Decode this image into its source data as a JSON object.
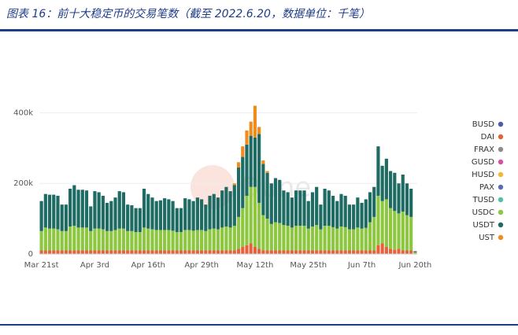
{
  "chart_data": {
    "type": "stacked_bar",
    "title": "图表 16：前十大稳定币的交易笔数（截至 2022.6.20，数据单位：千笔）",
    "watermark": "Dune",
    "categories": [
      "Mar 21st",
      null,
      null,
      null,
      null,
      null,
      null,
      null,
      null,
      null,
      null,
      null,
      null,
      "Apr 3rd",
      null,
      null,
      null,
      null,
      null,
      null,
      null,
      null,
      null,
      null,
      null,
      null,
      "Apr 16th",
      null,
      null,
      null,
      null,
      null,
      null,
      null,
      null,
      null,
      null,
      null,
      null,
      "Apr 29th",
      null,
      null,
      null,
      null,
      null,
      null,
      null,
      null,
      null,
      null,
      null,
      null,
      "May 12th",
      null,
      null,
      null,
      null,
      null,
      null,
      null,
      null,
      null,
      null,
      null,
      null,
      "May 25th",
      null,
      null,
      null,
      null,
      null,
      null,
      null,
      null,
      null,
      null,
      null,
      null,
      "Jun 7th",
      null,
      null,
      null,
      null,
      null,
      null,
      null,
      null,
      null,
      null,
      null,
      null,
      "Jun 20th"
    ],
    "ylim": [
      0,
      430000
    ],
    "yticks": [
      0,
      {
        "value": 200000,
        "label": "200k"
      },
      {
        "value": 400000,
        "label": "400k"
      }
    ],
    "series": [
      {
        "name": "BUSD",
        "color": "#4e5ba6",
        "values": [
          0,
          0,
          0,
          0,
          0,
          0,
          0,
          0,
          0,
          0,
          0,
          0,
          0,
          0,
          0,
          0,
          0,
          0,
          0,
          0,
          0,
          0,
          0,
          0,
          0,
          0,
          0,
          0,
          0,
          0,
          0,
          0,
          0,
          0,
          0,
          0,
          0,
          0,
          0,
          0,
          0,
          0,
          0,
          0,
          0,
          0,
          0,
          0,
          0,
          0,
          0,
          0,
          0,
          0,
          0,
          0,
          0,
          0,
          0,
          0,
          0,
          0,
          0,
          0,
          0,
          0,
          0,
          0,
          0,
          0,
          0,
          0,
          0,
          0,
          0,
          0,
          0,
          0,
          0,
          0,
          0,
          0,
          0,
          0,
          0,
          0,
          0,
          0,
          0,
          0,
          0,
          0
        ]
      },
      {
        "name": "DAI",
        "color": "#e8603c",
        "values": [
          10000,
          10000,
          10000,
          10000,
          10000,
          10000,
          10000,
          10000,
          10000,
          10000,
          10000,
          10000,
          10000,
          10000,
          10000,
          10000,
          10000,
          10000,
          10000,
          10000,
          10000,
          10000,
          10000,
          10000,
          10000,
          10000,
          10000,
          10000,
          10000,
          10000,
          10000,
          10000,
          10000,
          10000,
          10000,
          10000,
          10000,
          10000,
          10000,
          10000,
          10000,
          10000,
          10000,
          10000,
          10000,
          10000,
          10000,
          10000,
          15000,
          20000,
          25000,
          30000,
          20000,
          15000,
          10000,
          10000,
          10000,
          10000,
          10000,
          10000,
          10000,
          10000,
          10000,
          10000,
          10000,
          10000,
          10000,
          10000,
          10000,
          10000,
          10000,
          10000,
          10000,
          10000,
          10000,
          10000,
          10000,
          10000,
          10000,
          10000,
          10000,
          10000,
          25000,
          30000,
          20000,
          15000,
          12000,
          15000,
          10000,
          10000,
          10000,
          2000
        ]
      },
      {
        "name": "FRAX",
        "color": "#8c8c8c",
        "values": [
          0,
          0,
          0,
          0,
          0,
          0,
          0,
          0,
          0,
          0,
          0,
          0,
          0,
          0,
          0,
          0,
          0,
          0,
          0,
          0,
          0,
          0,
          0,
          0,
          0,
          0,
          0,
          0,
          0,
          0,
          0,
          0,
          0,
          0,
          0,
          0,
          0,
          0,
          0,
          0,
          0,
          0,
          0,
          0,
          0,
          0,
          0,
          0,
          0,
          0,
          0,
          0,
          0,
          0,
          0,
          0,
          0,
          0,
          0,
          0,
          0,
          0,
          0,
          0,
          0,
          0,
          0,
          0,
          0,
          0,
          0,
          0,
          0,
          0,
          0,
          0,
          0,
          0,
          0,
          0,
          0,
          0,
          0,
          0,
          0,
          0,
          0,
          0,
          0,
          0,
          0,
          0
        ]
      },
      {
        "name": "GUSD",
        "color": "#d94fa0",
        "values": [
          0,
          0,
          0,
          0,
          0,
          0,
          0,
          0,
          0,
          0,
          0,
          0,
          0,
          0,
          0,
          0,
          0,
          0,
          0,
          0,
          0,
          0,
          0,
          0,
          0,
          0,
          0,
          0,
          0,
          0,
          0,
          0,
          0,
          0,
          0,
          0,
          0,
          0,
          0,
          0,
          0,
          0,
          0,
          0,
          0,
          0,
          0,
          0,
          0,
          0,
          0,
          0,
          0,
          0,
          0,
          0,
          0,
          0,
          0,
          0,
          0,
          0,
          0,
          0,
          0,
          0,
          0,
          0,
          0,
          0,
          0,
          0,
          0,
          0,
          0,
          0,
          0,
          0,
          0,
          0,
          0,
          0,
          0,
          0,
          0,
          0,
          0,
          0,
          0,
          0,
          0,
          0
        ]
      },
      {
        "name": "HUSD",
        "color": "#f2b630",
        "values": [
          0,
          0,
          0,
          0,
          0,
          0,
          0,
          0,
          0,
          0,
          0,
          0,
          0,
          0,
          0,
          0,
          0,
          0,
          0,
          0,
          0,
          0,
          0,
          0,
          0,
          0,
          0,
          0,
          0,
          0,
          0,
          0,
          0,
          0,
          0,
          0,
          0,
          0,
          0,
          0,
          0,
          0,
          0,
          0,
          0,
          0,
          0,
          0,
          0,
          0,
          0,
          0,
          0,
          0,
          0,
          0,
          0,
          0,
          0,
          0,
          0,
          0,
          0,
          0,
          0,
          0,
          0,
          0,
          0,
          0,
          0,
          0,
          0,
          0,
          0,
          0,
          0,
          0,
          0,
          0,
          0,
          0,
          0,
          0,
          0,
          0,
          0,
          0,
          0,
          0,
          0,
          0
        ]
      },
      {
        "name": "PAX",
        "color": "#5a6bb5",
        "values": [
          0,
          0,
          0,
          0,
          0,
          0,
          0,
          0,
          0,
          0,
          0,
          0,
          0,
          0,
          0,
          0,
          0,
          0,
          0,
          0,
          0,
          0,
          0,
          0,
          0,
          0,
          0,
          0,
          0,
          0,
          0,
          0,
          0,
          0,
          0,
          0,
          0,
          0,
          0,
          0,
          0,
          0,
          0,
          0,
          0,
          0,
          0,
          0,
          0,
          0,
          0,
          0,
          0,
          0,
          0,
          0,
          0,
          0,
          0,
          0,
          0,
          0,
          0,
          0,
          0,
          0,
          0,
          0,
          0,
          0,
          0,
          0,
          0,
          0,
          0,
          0,
          0,
          0,
          0,
          0,
          0,
          0,
          0,
          0,
          0,
          0,
          0,
          0,
          0,
          0,
          0,
          0
        ]
      },
      {
        "name": "TUSD",
        "color": "#4fc1a6",
        "values": [
          0,
          0,
          0,
          0,
          0,
          0,
          0,
          0,
          0,
          0,
          0,
          0,
          0,
          0,
          0,
          0,
          0,
          0,
          0,
          0,
          0,
          0,
          0,
          0,
          0,
          0,
          0,
          0,
          0,
          0,
          0,
          0,
          0,
          0,
          0,
          0,
          0,
          0,
          0,
          0,
          0,
          0,
          0,
          0,
          0,
          0,
          0,
          0,
          0,
          0,
          0,
          0,
          0,
          0,
          0,
          0,
          0,
          0,
          0,
          0,
          0,
          0,
          0,
          0,
          0,
          0,
          0,
          0,
          0,
          0,
          0,
          0,
          0,
          0,
          0,
          0,
          0,
          0,
          0,
          0,
          0,
          0,
          0,
          0,
          0,
          0,
          0,
          0,
          0,
          0,
          0,
          0
        ]
      },
      {
        "name": "USDC",
        "color": "#8dc63f",
        "values": [
          55000,
          65000,
          62000,
          62000,
          60000,
          55000,
          55000,
          68000,
          70000,
          65000,
          65000,
          65000,
          55000,
          62000,
          62000,
          60000,
          55000,
          55000,
          58000,
          62000,
          62000,
          55000,
          55000,
          52000,
          52000,
          65000,
          62000,
          60000,
          58000,
          58000,
          58000,
          58000,
          56000,
          52000,
          52000,
          58000,
          58000,
          56000,
          58000,
          58000,
          55000,
          60000,
          62000,
          60000,
          65000,
          68000,
          65000,
          70000,
          90000,
          110000,
          140000,
          160000,
          170000,
          130000,
          100000,
          90000,
          75000,
          80000,
          78000,
          72000,
          70000,
          65000,
          70000,
          70000,
          70000,
          62000,
          68000,
          72000,
          60000,
          70000,
          70000,
          66000,
          62000,
          68000,
          66000,
          60000,
          60000,
          65000,
          62000,
          64000,
          80000,
          95000,
          140000,
          120000,
          135000,
          115000,
          110000,
          100000,
          110000,
          100000,
          95000,
          3000
        ]
      },
      {
        "name": "USDT",
        "color": "#1e6b63",
        "values": [
          85000,
          95000,
          96000,
          96000,
          95000,
          75000,
          75000,
          107000,
          115000,
          107000,
          107000,
          105000,
          70000,
          106000,
          103000,
          95000,
          80000,
          85000,
          92000,
          106000,
          103000,
          75000,
          73000,
          68000,
          68000,
          110000,
          98000,
          90000,
          82000,
          84000,
          90000,
          87000,
          84000,
          68000,
          68000,
          90000,
          87000,
          84000,
          92000,
          87000,
          75000,
          95000,
          98000,
          90000,
          105000,
          112000,
          103000,
          115000,
          140000,
          145000,
          145000,
          145000,
          140000,
          195000,
          145000,
          130000,
          115000,
          125000,
          122000,
          98000,
          95000,
          85000,
          100000,
          100000,
          100000,
          78000,
          97000,
          108000,
          70000,
          105000,
          100000,
          89000,
          78000,
          92000,
          89000,
          70000,
          70000,
          85000,
          73000,
          81000,
          85000,
          85000,
          140000,
          100000,
          115000,
          105000,
          108000,
          85000,
          105000,
          90000,
          80000,
          3000
        ]
      },
      {
        "name": "UST",
        "color": "#f08c1c",
        "values": [
          0,
          0,
          0,
          0,
          0,
          0,
          0,
          0,
          0,
          0,
          0,
          0,
          0,
          0,
          0,
          0,
          0,
          0,
          0,
          0,
          0,
          0,
          0,
          0,
          0,
          0,
          0,
          0,
          0,
          0,
          0,
          0,
          0,
          0,
          0,
          0,
          0,
          0,
          0,
          0,
          0,
          0,
          0,
          0,
          0,
          0,
          0,
          5000,
          15000,
          30000,
          40000,
          40000,
          90000,
          20000,
          10000,
          5000,
          0,
          0,
          0,
          0,
          0,
          0,
          0,
          0,
          0,
          0,
          0,
          0,
          0,
          0,
          0,
          0,
          0,
          0,
          0,
          0,
          0,
          0,
          0,
          0,
          0,
          0,
          0,
          0,
          0,
          0,
          0,
          0,
          0,
          0,
          0,
          0
        ]
      }
    ]
  }
}
